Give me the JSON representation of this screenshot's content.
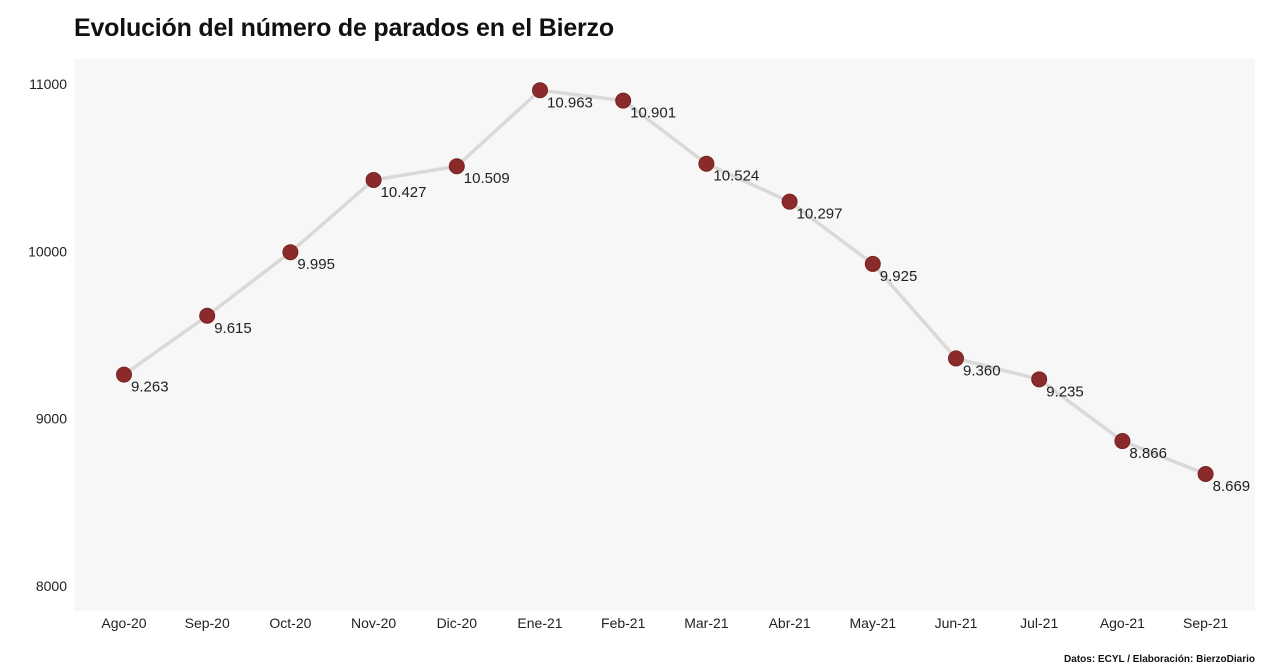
{
  "title": "Evolución del número de parados en el Bierzo",
  "source": "Datos: ECYL / Elaboración: BierzoDiario",
  "colors": {
    "panel_background": "#f7f7f7",
    "line": "#d9d9d9",
    "point": "#8b2a2a",
    "text": "#222222"
  },
  "chart_data": {
    "type": "line",
    "title": "Evolución del número de parados en el Bierzo",
    "xlabel": "",
    "ylabel": "",
    "categories": [
      "Ago-20",
      "Sep-20",
      "Oct-20",
      "Nov-20",
      "Dic-20",
      "Ene-21",
      "Feb-21",
      "Mar-21",
      "Abr-21",
      "May-21",
      "Jun-21",
      "Jul-21",
      "Ago-21",
      "Sep-21"
    ],
    "values": [
      9263,
      9615,
      9995,
      10427,
      10509,
      10963,
      10901,
      10524,
      10297,
      9925,
      9360,
      9235,
      8866,
      8669
    ],
    "data_labels": [
      "9.263",
      "9.615",
      "9.995",
      "10.427",
      "10.509",
      "10.963",
      "10.901",
      "10.524",
      "10.297",
      "9.925",
      "9.360",
      "9.235",
      "8.866",
      "8.669"
    ],
    "y_ticks": [
      8000,
      9000,
      10000,
      11000
    ],
    "y_tick_labels": [
      "8000",
      "9000",
      "10000",
      "11000"
    ],
    "ylim": [
      7850,
      11150
    ],
    "grid": false,
    "legend": "none"
  }
}
